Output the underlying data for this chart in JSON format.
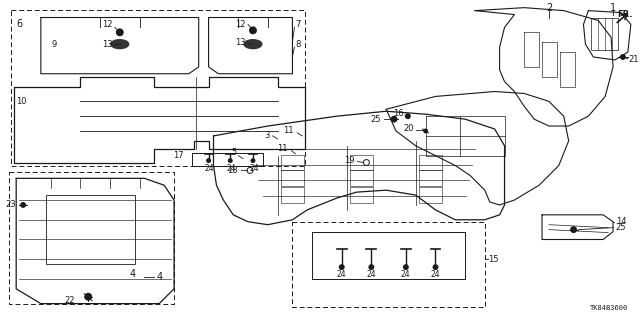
{
  "diagram_code": "TK84B3600",
  "bg": "#ffffff",
  "lc": "#1a1a1a",
  "fig_w": 6.4,
  "fig_h": 3.19,
  "dpi": 100
}
